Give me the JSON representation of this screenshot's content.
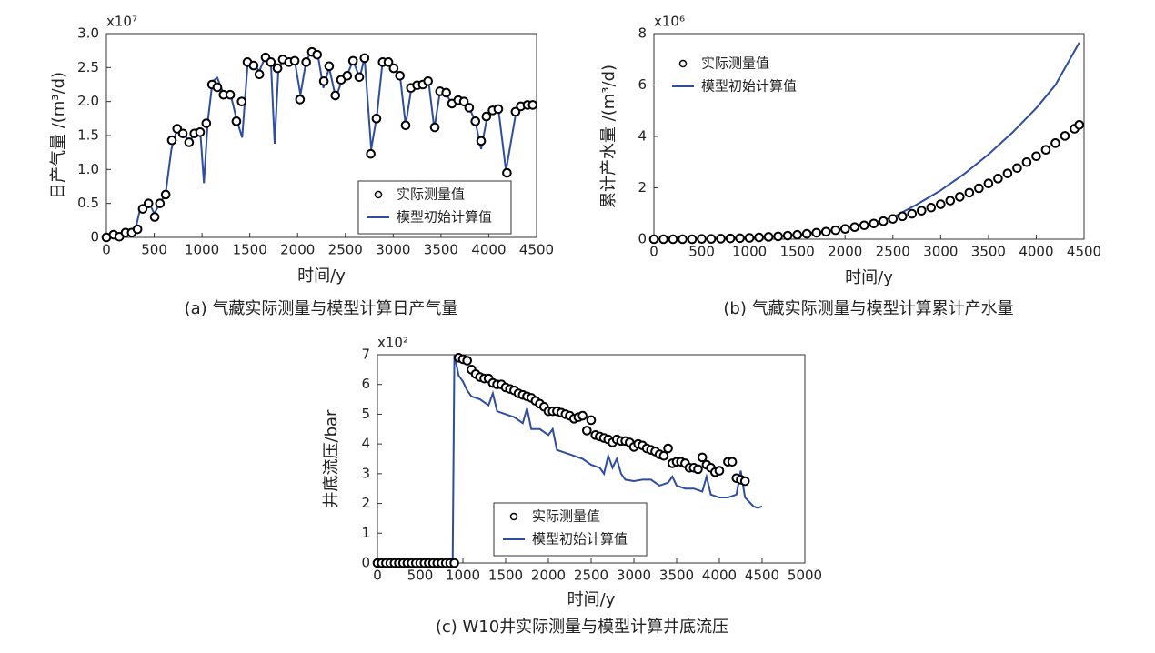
{
  "chart_data": [
    {
      "type": "line",
      "caption": "(a) 气藏实际测量与模型计算日产气量",
      "xlabel": "时间/y",
      "ylabel": "日产气量 /(m³/d)",
      "y_exponent": "x10⁷",
      "xlim": [
        0,
        4500
      ],
      "ylim": [
        0,
        3
      ],
      "xticks": [
        0,
        500,
        1000,
        1500,
        2000,
        2500,
        3000,
        3500,
        4000,
        4500
      ],
      "yticks": [
        0,
        0.5,
        {
          "value": 1,
          "label": "1.0"
        },
        1.5,
        {
          "value": 2,
          "label": "2.0"
        },
        2.5,
        {
          "value": 3,
          "label": "3.0"
        }
      ],
      "legend": "lower right",
      "series": [
        {
          "name": "实际测量值",
          "mode": "markers",
          "color": "#000000",
          "x": [
            0,
            75,
            135,
            200,
            265,
            325,
            380,
            440,
            505,
            560,
            620,
            685,
            740,
            800,
            865,
            920,
            980,
            1045,
            1105,
            1160,
            1225,
            1295,
            1360,
            1415,
            1475,
            1540,
            1600,
            1665,
            1720,
            1790,
            1845,
            1910,
            1970,
            2025,
            2090,
            2150,
            2205,
            2275,
            2330,
            2395,
            2455,
            2520,
            2580,
            2645,
            2700,
            2765,
            2825,
            2890,
            2950,
            3005,
            3070,
            3130,
            3185,
            3250,
            3310,
            3365,
            3435,
            3490,
            3555,
            3615,
            3680,
            3740,
            3795,
            3860,
            3920,
            3975,
            4040,
            4100,
            4190,
            4280,
            4335,
            4405,
            4460
          ],
          "values": [
            0,
            0.04,
            0.01,
            0.07,
            0.07,
            0.12,
            0.42,
            0.5,
            0.3,
            0.5,
            0.63,
            1.43,
            1.6,
            1.53,
            1.4,
            1.53,
            1.55,
            1.68,
            2.25,
            2.21,
            2.1,
            2.1,
            1.71,
            2.0,
            2.58,
            2.53,
            2.4,
            2.65,
            2.58,
            2.49,
            2.62,
            2.58,
            2.6,
            2.03,
            2.58,
            2.73,
            2.69,
            2.3,
            2.52,
            2.09,
            2.32,
            2.38,
            2.6,
            2.36,
            2.64,
            1.23,
            1.75,
            2.58,
            2.58,
            2.49,
            2.38,
            1.65,
            2.2,
            2.24,
            2.25,
            2.3,
            1.62,
            2.15,
            2.13,
            1.97,
            2.02,
            2.0,
            1.91,
            1.71,
            1.42,
            1.78,
            1.87,
            1.89,
            0.95,
            1.85,
            1.93,
            1.95,
            1.95
          ]
        },
        {
          "name": "模型初始计算值",
          "mode": "lines",
          "color": "#2e4d9f",
          "x": [
            0,
            100,
            200,
            300,
            350,
            450,
            500,
            560,
            620,
            680,
            740,
            800,
            870,
            920,
            980,
            1020,
            1060,
            1110,
            1160,
            1230,
            1300,
            1360,
            1420,
            1480,
            1540,
            1600,
            1660,
            1720,
            1760,
            1800,
            1850,
            1910,
            1970,
            2030,
            2090,
            2150,
            2210,
            2270,
            2330,
            2400,
            2460,
            2520,
            2580,
            2650,
            2700,
            2770,
            2830,
            2890,
            2950,
            3010,
            3070,
            3130,
            3190,
            3250,
            3310,
            3370,
            3430,
            3490,
            3560,
            3620,
            3680,
            3740,
            3800,
            3860,
            3920,
            3980,
            4040,
            4100,
            4180,
            4280,
            4340,
            4400,
            4460
          ],
          "values": [
            0,
            0.03,
            0.05,
            0.1,
            0.4,
            0.5,
            0.35,
            0.5,
            0.65,
            1.3,
            1.6,
            1.55,
            1.4,
            1.55,
            1.6,
            0.8,
            1.7,
            2.3,
            2.35,
            2.1,
            2.1,
            1.75,
            1.47,
            2.6,
            2.55,
            2.45,
            2.65,
            2.6,
            1.38,
            2.5,
            2.6,
            2.6,
            2.6,
            2.1,
            2.6,
            2.75,
            2.7,
            2.2,
            2.5,
            2.05,
            2.3,
            2.4,
            2.6,
            2.35,
            2.65,
            1.3,
            1.8,
            2.6,
            2.6,
            2.5,
            2.4,
            1.65,
            2.2,
            2.25,
            2.25,
            2.3,
            1.6,
            2.15,
            2.1,
            1.95,
            2.0,
            2.0,
            1.9,
            1.7,
            1.3,
            1.75,
            1.85,
            1.9,
            0.98,
            1.8,
            1.9,
            1.95,
            1.95
          ]
        }
      ]
    },
    {
      "type": "line",
      "caption": "(b) 气藏实际测量与模型计算累计产水量",
      "xlabel": "时间/y",
      "ylabel": "累计产水量 /(m³/d)",
      "y_exponent": "x10⁶",
      "xlim": [
        0,
        4500
      ],
      "ylim": [
        0,
        8
      ],
      "xticks": [
        0,
        500,
        1000,
        1500,
        2000,
        2500,
        3000,
        3500,
        4000,
        4500
      ],
      "yticks": [
        0,
        2,
        4,
        6,
        8
      ],
      "legend": "upper left",
      "series": [
        {
          "name": "实际测量值",
          "mode": "markers",
          "color": "#000000",
          "x": [
            0,
            100,
            200,
            300,
            400,
            500,
            600,
            700,
            800,
            900,
            1000,
            1100,
            1200,
            1300,
            1400,
            1500,
            1600,
            1700,
            1800,
            1900,
            2000,
            2100,
            2200,
            2300,
            2400,
            2500,
            2600,
            2700,
            2800,
            2900,
            3000,
            3100,
            3200,
            3300,
            3400,
            3500,
            3600,
            3700,
            3800,
            3900,
            4000,
            4100,
            4200,
            4300,
            4400,
            4450
          ],
          "values": [
            0,
            0,
            0,
            0,
            0,
            0.01,
            0.01,
            0.02,
            0.03,
            0.04,
            0.05,
            0.07,
            0.09,
            0.11,
            0.14,
            0.17,
            0.21,
            0.25,
            0.29,
            0.35,
            0.4,
            0.47,
            0.54,
            0.61,
            0.7,
            0.79,
            0.89,
            0.99,
            1.11,
            1.23,
            1.36,
            1.5,
            1.65,
            1.81,
            1.98,
            2.17,
            2.36,
            2.56,
            2.77,
            3.0,
            3.23,
            3.48,
            3.74,
            4.02,
            4.3,
            4.45
          ]
        },
        {
          "name": "模型初始计算值",
          "mode": "lines",
          "color": "#2e4d9f",
          "x": [
            0,
            500,
            1000,
            1500,
            2000,
            2250,
            2500,
            2750,
            3000,
            3250,
            3500,
            3750,
            4000,
            4200,
            4450
          ],
          "values": [
            0,
            0.01,
            0.05,
            0.17,
            0.42,
            0.6,
            0.85,
            1.35,
            1.9,
            2.55,
            3.3,
            4.15,
            5.1,
            6.0,
            7.65
          ]
        }
      ]
    },
    {
      "type": "line",
      "caption": "(c) W10井实际测量与模型计算井底流压",
      "xlabel": "时间/y",
      "ylabel": "井底流压/bar",
      "y_exponent": "x10²",
      "xlim": [
        0,
        5000
      ],
      "ylim": [
        0,
        7
      ],
      "xticks": [
        0,
        500,
        1000,
        1500,
        2000,
        2500,
        3000,
        3500,
        4000,
        4500,
        5000
      ],
      "yticks": [
        0,
        1,
        2,
        3,
        4,
        5,
        6,
        7
      ],
      "legend": "lower center",
      "series": [
        {
          "name": "实际测量值",
          "mode": "markers",
          "color": "#000000",
          "x": [
            0,
            50,
            100,
            150,
            200,
            250,
            300,
            350,
            400,
            450,
            500,
            550,
            600,
            650,
            700,
            750,
            800,
            850,
            900,
            950,
            1000,
            1050,
            1100,
            1150,
            1200,
            1250,
            1300,
            1350,
            1400,
            1450,
            1500,
            1550,
            1600,
            1650,
            1700,
            1750,
            1800,
            1850,
            1900,
            1950,
            2000,
            2050,
            2100,
            2150,
            2200,
            2250,
            2300,
            2350,
            2400,
            2450,
            2500,
            2550,
            2600,
            2650,
            2700,
            2750,
            2800,
            2850,
            2900,
            2950,
            3000,
            3050,
            3100,
            3150,
            3200,
            3250,
            3300,
            3350,
            3400,
            3450,
            3500,
            3550,
            3600,
            3650,
            3700,
            3750,
            3800,
            3850,
            3900,
            3950,
            4000,
            4100,
            4150,
            4200,
            4250,
            4300
          ],
          "values": [
            0,
            0,
            0,
            0,
            0,
            0,
            0,
            0,
            0,
            0,
            0,
            0,
            0,
            0,
            0,
            0,
            0,
            0,
            0,
            6.9,
            6.85,
            6.8,
            6.5,
            6.35,
            6.25,
            6.2,
            6.2,
            6.05,
            6.0,
            6.0,
            5.9,
            5.85,
            5.8,
            5.7,
            5.65,
            5.6,
            5.55,
            5.45,
            5.35,
            5.25,
            5.1,
            5.1,
            5.1,
            5.05,
            5.0,
            4.95,
            4.85,
            4.9,
            4.95,
            4.45,
            4.8,
            4.3,
            4.25,
            4.2,
            4.15,
            4.05,
            4.15,
            4.1,
            4.1,
            4.05,
            3.9,
            4.0,
            3.95,
            3.85,
            3.8,
            3.75,
            3.65,
            3.6,
            3.85,
            3.35,
            3.4,
            3.4,
            3.35,
            3.2,
            3.2,
            3.15,
            3.55,
            3.3,
            3.2,
            3.05,
            3.1,
            3.4,
            3.4,
            2.85,
            2.8,
            2.75
          ]
        },
        {
          "name": "模型初始计算值",
          "mode": "lines",
          "color": "#2e4d9f",
          "x": [
            0,
            880,
            900,
            950,
            1000,
            1050,
            1100,
            1200,
            1300,
            1350,
            1400,
            1500,
            1600,
            1700,
            1750,
            1800,
            1900,
            2000,
            2050,
            2100,
            2200,
            2300,
            2400,
            2500,
            2600,
            2650,
            2700,
            2750,
            2800,
            2850,
            2900,
            3000,
            3100,
            3200,
            3300,
            3400,
            3450,
            3500,
            3600,
            3700,
            3800,
            3850,
            3900,
            4000,
            4100,
            4200,
            4250,
            4300,
            4400,
            4450,
            4500
          ],
          "values": [
            0,
            0,
            7.0,
            6.3,
            6.1,
            5.8,
            5.6,
            5.5,
            5.3,
            5.7,
            5.1,
            5.0,
            4.9,
            4.7,
            5.2,
            4.5,
            4.5,
            4.3,
            4.5,
            3.8,
            3.7,
            3.6,
            3.5,
            3.3,
            3.2,
            3.0,
            3.6,
            3.2,
            3.5,
            3.0,
            2.8,
            2.75,
            2.8,
            2.8,
            2.6,
            2.7,
            2.9,
            2.6,
            2.5,
            2.5,
            2.4,
            2.9,
            2.3,
            2.2,
            2.2,
            2.3,
            3.1,
            2.2,
            1.9,
            1.85,
            1.9
          ]
        }
      ]
    }
  ]
}
